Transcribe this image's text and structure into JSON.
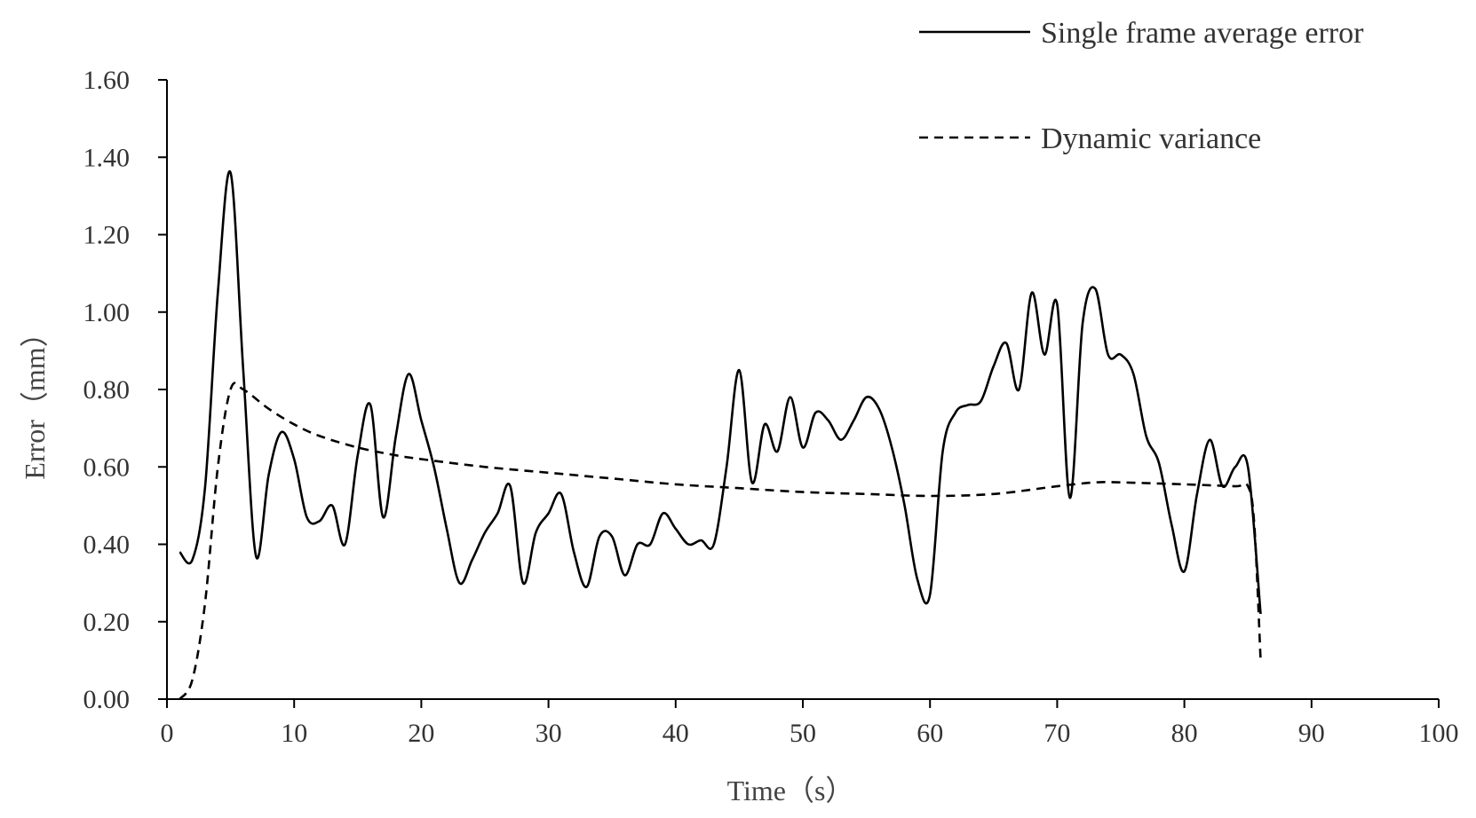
{
  "chart_data": {
    "type": "line",
    "title": "",
    "xlabel": "Time（s）",
    "ylabel": "Error（mm）",
    "xlim": [
      0,
      100
    ],
    "ylim": [
      0,
      1.6
    ],
    "x_ticks": [
      0,
      10,
      20,
      30,
      40,
      50,
      60,
      70,
      80,
      90,
      100
    ],
    "x_tick_labels": [
      "0",
      "10",
      "20",
      "30",
      "40",
      "50",
      "60",
      "70",
      "80",
      "90",
      "100"
    ],
    "y_ticks": [
      0,
      0.2,
      0.4,
      0.6,
      0.8,
      1.0,
      1.2,
      1.4,
      1.6
    ],
    "y_tick_labels": [
      "0.00",
      "0.20",
      "0.40",
      "0.60",
      "0.80",
      "1.00",
      "1.20",
      "1.40",
      "1.60"
    ],
    "grid": false,
    "legend_position": "top-right",
    "series": [
      {
        "name": "Single frame average error",
        "style": "solid",
        "color": "#000000",
        "x": [
          1,
          2,
          3,
          4,
          5,
          6,
          7,
          8,
          9,
          10,
          11,
          12,
          13,
          14,
          15,
          16,
          17,
          18,
          19,
          20,
          21,
          22,
          23,
          24,
          25,
          26,
          27,
          28,
          29,
          30,
          31,
          32,
          33,
          34,
          35,
          36,
          37,
          38,
          39,
          40,
          41,
          42,
          43,
          44,
          45,
          46,
          47,
          48,
          49,
          50,
          51,
          52,
          53,
          54,
          55,
          56,
          57,
          58,
          59,
          60,
          61,
          62,
          63,
          64,
          65,
          66,
          67,
          68,
          69,
          70,
          71,
          72,
          73,
          74,
          75,
          76,
          77,
          78,
          79,
          80,
          81,
          82,
          83,
          84,
          85,
          86
        ],
        "y": [
          0.38,
          0.36,
          0.55,
          1.05,
          1.36,
          0.85,
          0.37,
          0.58,
          0.69,
          0.62,
          0.47,
          0.46,
          0.5,
          0.4,
          0.63,
          0.76,
          0.47,
          0.68,
          0.84,
          0.72,
          0.6,
          0.44,
          0.3,
          0.36,
          0.43,
          0.48,
          0.55,
          0.3,
          0.43,
          0.48,
          0.53,
          0.38,
          0.29,
          0.42,
          0.42,
          0.32,
          0.4,
          0.4,
          0.48,
          0.44,
          0.4,
          0.41,
          0.4,
          0.6,
          0.85,
          0.56,
          0.71,
          0.64,
          0.78,
          0.65,
          0.74,
          0.72,
          0.67,
          0.72,
          0.78,
          0.75,
          0.65,
          0.5,
          0.31,
          0.27,
          0.64,
          0.74,
          0.76,
          0.77,
          0.86,
          0.92,
          0.8,
          1.05,
          0.89,
          1.02,
          0.52,
          0.97,
          1.06,
          0.89,
          0.89,
          0.84,
          0.68,
          0.61,
          0.45,
          0.33,
          0.53,
          0.67,
          0.55,
          0.6,
          0.6,
          0.22
        ]
      },
      {
        "name": "Dynamic variance",
        "style": "dashed",
        "color": "#000000",
        "x": [
          1,
          2,
          3,
          4,
          5,
          6,
          8,
          10,
          12,
          15,
          18,
          20,
          25,
          30,
          35,
          40,
          45,
          50,
          55,
          60,
          65,
          70,
          73,
          75,
          80,
          84,
          85,
          85.5,
          86
        ],
        "y": [
          0.0,
          0.05,
          0.25,
          0.6,
          0.8,
          0.8,
          0.75,
          0.71,
          0.68,
          0.65,
          0.63,
          0.62,
          0.6,
          0.585,
          0.57,
          0.555,
          0.545,
          0.535,
          0.53,
          0.525,
          0.53,
          0.55,
          0.56,
          0.56,
          0.555,
          0.55,
          0.55,
          0.45,
          0.1
        ]
      }
    ]
  }
}
